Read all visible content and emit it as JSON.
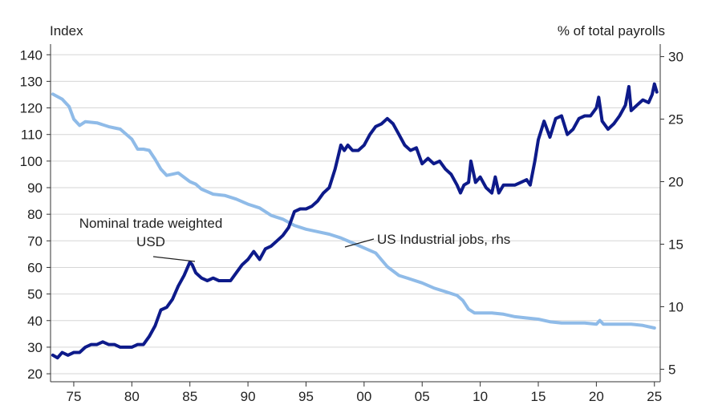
{
  "chart_data": {
    "type": "line",
    "title": "",
    "xlabel": "",
    "ylabel_left": "Index",
    "ylabel_right": "% of total payrolls",
    "xlim": [
      1973,
      2025.5
    ],
    "ylim_left": [
      17,
      144
    ],
    "ylim_right": [
      4.0,
      31.0
    ],
    "grid": "horizontal",
    "x_ticks": [
      {
        "value": 1975,
        "label": "75"
      },
      {
        "value": 1980,
        "label": "80"
      },
      {
        "value": 1985,
        "label": "85"
      },
      {
        "value": 1990,
        "label": "90"
      },
      {
        "value": 1995,
        "label": "95"
      },
      {
        "value": 2000,
        "label": "00"
      },
      {
        "value": 2005,
        "label": "05"
      },
      {
        "value": 2010,
        "label": "10"
      },
      {
        "value": 2015,
        "label": "15"
      },
      {
        "value": 2020,
        "label": "20"
      },
      {
        "value": 2025,
        "label": "25"
      }
    ],
    "y_ticks_left": [
      "20",
      "30",
      "40",
      "50",
      "60",
      "70",
      "80",
      "90",
      "100",
      "110",
      "120",
      "130",
      "140"
    ],
    "y_ticks_right": [
      "5",
      "10",
      "15",
      "20",
      "25",
      "30"
    ],
    "series": [
      {
        "name": "Nominal trade weighted USD",
        "axis": "left",
        "color": "#0d1a8a",
        "x": [
          1973.2,
          1973.6,
          1974.0,
          1974.5,
          1975.0,
          1975.5,
          1976.0,
          1976.5,
          1977.0,
          1977.5,
          1978.0,
          1978.5,
          1979.0,
          1979.5,
          1980.0,
          1980.5,
          1981.0,
          1981.5,
          1982.0,
          1982.5,
          1983.0,
          1983.5,
          1984.0,
          1984.5,
          1985.0,
          1985.2,
          1985.5,
          1986.0,
          1986.5,
          1987.0,
          1987.5,
          1988.0,
          1988.5,
          1989.0,
          1989.5,
          1990.0,
          1990.5,
          1991.0,
          1991.5,
          1992.0,
          1992.5,
          1993.0,
          1993.5,
          1994.0,
          1994.5,
          1995.0,
          1995.5,
          1996.0,
          1996.5,
          1997.0,
          1997.5,
          1998.0,
          1998.3,
          1998.6,
          1999.0,
          1999.5,
          2000.0,
          2000.5,
          2001.0,
          2001.5,
          2002.0,
          2002.5,
          2003.0,
          2003.5,
          2004.0,
          2004.5,
          2005.0,
          2005.5,
          2006.0,
          2006.5,
          2007.0,
          2007.5,
          2008.0,
          2008.3,
          2008.6,
          2009.0,
          2009.2,
          2009.6,
          2010.0,
          2010.5,
          2011.0,
          2011.3,
          2011.6,
          2012.0,
          2012.5,
          2013.0,
          2013.5,
          2014.0,
          2014.3,
          2014.7,
          2015.0,
          2015.5,
          2016.0,
          2016.5,
          2017.0,
          2017.5,
          2018.0,
          2018.5,
          2019.0,
          2019.5,
          2020.0,
          2020.2,
          2020.5,
          2021.0,
          2021.5,
          2022.0,
          2022.5,
          2022.8,
          2023.0,
          2023.5,
          2024.0,
          2024.5,
          2024.8,
          2025.0,
          2025.2
        ],
        "values": [
          27,
          26,
          28,
          27,
          28,
          28,
          30,
          31,
          31,
          32,
          31,
          31,
          30,
          30,
          30,
          31,
          31,
          34,
          38,
          44,
          45,
          48,
          53,
          57,
          62,
          61,
          58,
          56,
          55,
          56,
          55,
          55,
          55,
          58,
          61,
          63,
          66,
          63,
          67,
          68,
          70,
          72,
          75,
          81,
          82,
          82,
          83,
          85,
          88,
          90,
          97,
          106,
          104,
          106,
          104,
          104,
          106,
          110,
          113,
          114,
          116,
          114,
          110,
          106,
          104,
          105,
          99,
          101,
          99,
          100,
          97,
          95,
          91,
          88,
          91,
          92,
          100,
          92,
          94,
          90,
          88,
          94,
          88,
          91,
          91,
          91,
          92,
          93,
          91,
          100,
          108,
          115,
          109,
          116,
          117,
          110,
          112,
          116,
          117,
          117,
          120,
          124,
          115,
          112,
          114,
          117,
          121,
          128,
          119,
          121,
          123,
          122,
          125,
          129,
          126
        ]
      },
      {
        "name": "US Industrial jobs, rhs",
        "axis": "right",
        "color": "#8fbbe8",
        "x": [
          1973.2,
          1974.0,
          1974.6,
          1975.0,
          1975.5,
          1976.0,
          1977.0,
          1978.0,
          1978.5,
          1979.0,
          1979.5,
          1980.0,
          1980.5,
          1981.0,
          1981.5,
          1982.0,
          1982.5,
          1983.0,
          1983.5,
          1984.0,
          1985.0,
          1985.5,
          1986.0,
          1987.0,
          1988.0,
          1989.0,
          1990.0,
          1991.0,
          1992.0,
          1993.0,
          1994.0,
          1995.0,
          1996.0,
          1997.0,
          1998.0,
          1999.0,
          2000.0,
          2001.0,
          2002.0,
          2003.0,
          2004.0,
          2005.0,
          2006.0,
          2007.0,
          2008.0,
          2008.5,
          2009.0,
          2009.5,
          2010.0,
          2011.0,
          2012.0,
          2013.0,
          2014.0,
          2015.0,
          2016.0,
          2017.0,
          2018.0,
          2019.0,
          2020.0,
          2020.3,
          2020.6,
          2021.0,
          2022.0,
          2023.0,
          2024.0,
          2025.0
        ],
        "values": [
          27.0,
          26.6,
          26.0,
          25.0,
          24.5,
          24.8,
          24.7,
          24.4,
          24.3,
          24.2,
          23.8,
          23.4,
          22.6,
          22.6,
          22.5,
          21.8,
          21.0,
          20.5,
          20.6,
          20.7,
          20.0,
          19.8,
          19.4,
          19.0,
          18.9,
          18.6,
          18.2,
          17.9,
          17.3,
          17.0,
          16.5,
          16.2,
          16.0,
          15.8,
          15.5,
          15.1,
          14.7,
          14.3,
          13.2,
          12.5,
          12.2,
          11.9,
          11.5,
          11.2,
          10.9,
          10.5,
          9.8,
          9.5,
          9.5,
          9.5,
          9.4,
          9.2,
          9.1,
          9.0,
          8.8,
          8.7,
          8.7,
          8.7,
          8.6,
          8.9,
          8.6,
          8.6,
          8.6,
          8.6,
          8.5,
          8.3
        ]
      }
    ],
    "annotations": [
      {
        "lines": [
          "Nominal trade weighted",
          "USD"
        ],
        "series": "Nominal trade weighted USD"
      },
      {
        "lines": [
          "US Industrial jobs, rhs"
        ],
        "series": "US Industrial jobs, rhs"
      }
    ]
  }
}
